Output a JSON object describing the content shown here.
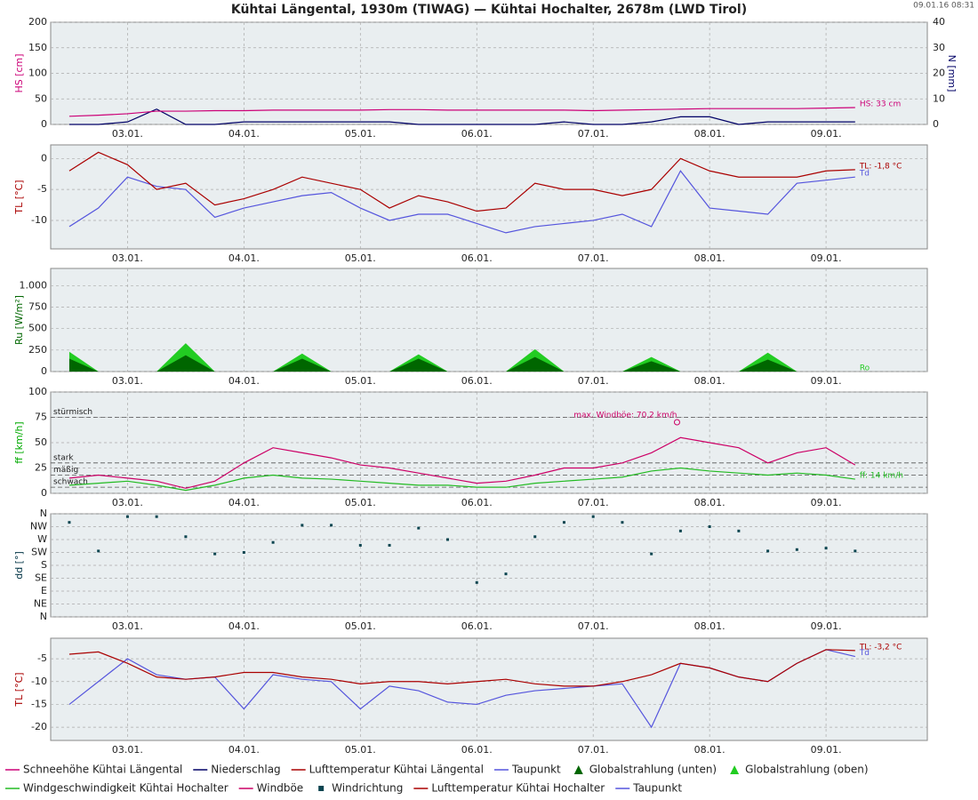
{
  "title": "Kühtai Längental, 1930m (TIWAG) — Kühtai Hochalter, 2678m (LWD Tirol)",
  "timestamp": "09.01.16 08:31",
  "x": [
    2.5,
    2.75,
    3,
    3.25,
    3.5,
    3.75,
    4,
    4.25,
    4.5,
    4.75,
    5,
    5.25,
    5.5,
    5.75,
    6,
    6.25,
    6.5,
    6.75,
    7,
    7.25,
    7.5,
    7.75,
    8,
    8.25,
    8.5,
    8.75,
    9,
    9.25
  ],
  "xlim": [
    2.34,
    9.87
  ],
  "xticks": [
    {
      "value": 3,
      "label": "03.01."
    },
    {
      "value": 4,
      "label": "04.01."
    },
    {
      "value": 5,
      "label": "05.01."
    },
    {
      "value": 6,
      "label": "06.01."
    },
    {
      "value": 7,
      "label": "07.01."
    },
    {
      "value": 8,
      "label": "08.01."
    },
    {
      "value": 9,
      "label": "09.01."
    }
  ],
  "chart_data": [
    {
      "type": "line",
      "ylabel": "HS [cm]",
      "ylabel_color": "#cc0077",
      "y2label": "N [mm]",
      "y2label_color": "#000066",
      "ylim": [
        0,
        200
      ],
      "yticks": [
        0,
        50,
        100,
        150,
        200
      ],
      "y2lim": [
        0,
        40
      ],
      "y2ticks": [
        0,
        10,
        20,
        30,
        40
      ],
      "series": [
        {
          "name": "Schneehöhe Kühtai Längental",
          "color": "#cc0077",
          "label": "HS: 33 cm",
          "values": [
            16,
            18,
            21,
            26,
            26,
            27,
            27,
            28,
            28,
            28,
            28,
            29,
            29,
            28,
            28,
            28,
            28,
            28,
            27,
            28,
            29,
            30,
            31,
            31,
            31,
            31,
            32,
            33
          ]
        },
        {
          "name": "Niederschlag",
          "color": "#000066",
          "axis": "y2",
          "values": [
            0,
            0,
            1,
            6,
            0,
            0,
            1,
            1,
            1,
            1,
            1,
            1,
            0,
            0,
            0,
            0,
            0,
            1,
            0,
            0,
            1,
            3,
            3,
            0,
            1,
            1,
            1,
            1
          ]
        }
      ]
    },
    {
      "type": "line",
      "ylabel": "TL [°C]",
      "ylabel_color": "#aa0000",
      "ylim": [
        -14.6,
        2.2
      ],
      "yticks": [
        -10,
        -5,
        0
      ],
      "series": [
        {
          "name": "Lufttemperatur Kühtai Längental",
          "color": "#aa0000",
          "label": "TL: -1,8 °C",
          "values": [
            -2,
            1,
            -1,
            -5,
            -4,
            -7.5,
            -6.5,
            -5,
            -3,
            -4,
            -5,
            -8,
            -6,
            -7,
            -8.5,
            -8,
            -4,
            -5,
            -5,
            -6,
            -5,
            0,
            -2,
            -3,
            -3,
            -3,
            -2,
            -1.8
          ]
        },
        {
          "name": "Taupunkt",
          "color": "#5555dd",
          "label": "Td",
          "values": [
            -11,
            -8,
            -3,
            -4.5,
            -5,
            -9.5,
            -8,
            -7,
            -6,
            -5.5,
            -8,
            -10,
            -9,
            -9,
            -10.5,
            -12,
            -11,
            -10.5,
            -10,
            -9,
            -11,
            -2,
            -8,
            -8.5,
            -9,
            -4,
            -3.5,
            -3
          ]
        }
      ]
    },
    {
      "type": "area",
      "ylabel": "Ru [W/m²]",
      "ylabel_color": "#006600",
      "ylim": [
        0,
        1200
      ],
      "yticks": [
        0,
        250,
        500,
        750,
        {
          "value": 1000,
          "label": "1.000"
        }
      ],
      "series": [
        {
          "name": "Globalstrahlung (unten)",
          "color": "#006600",
          "values": [
            150,
            0,
            0,
            0,
            190,
            0,
            0,
            0,
            150,
            0,
            0,
            0,
            150,
            0,
            0,
            0,
            170,
            0,
            0,
            0,
            120,
            0,
            0,
            0,
            140,
            0,
            0,
            0
          ]
        },
        {
          "name": "Globalstrahlung (oben)",
          "color": "#22cc22",
          "label": "Ro",
          "values": [
            230,
            0,
            0,
            0,
            330,
            0,
            0,
            0,
            210,
            0,
            0,
            0,
            200,
            0,
            0,
            0,
            260,
            0,
            0,
            0,
            170,
            0,
            0,
            0,
            220,
            0,
            0,
            0
          ]
        }
      ]
    },
    {
      "type": "line",
      "ylabel": "ff [km/h]",
      "ylabel_color": "#00aa00",
      "ylim": [
        0,
        100
      ],
      "yticks": [
        0,
        25,
        50,
        75,
        100
      ],
      "thresholds": [
        {
          "label": "stürmisch",
          "value": 75
        },
        {
          "label": "stark",
          "value": 30
        },
        {
          "label": "mäßig",
          "value": 18
        },
        {
          "label": "schwach",
          "value": 6
        }
      ],
      "max": {
        "label": "max. Windböe: 70,2 km/h",
        "x": 7.72,
        "value": 70.2
      },
      "series": [
        {
          "name": "Windgeschwindigkeit Kühtai Hochalter",
          "color": "#22bb22",
          "label": "ff: 14 km/h",
          "values": [
            8,
            10,
            12,
            8,
            3,
            8,
            15,
            18,
            15,
            14,
            12,
            10,
            8,
            8,
            6,
            6,
            10,
            12,
            14,
            16,
            22,
            25,
            22,
            20,
            18,
            20,
            18,
            14
          ]
        },
        {
          "name": "Windböe",
          "color": "#cc0066",
          "values": [
            15,
            18,
            15,
            12,
            5,
            12,
            30,
            45,
            40,
            35,
            28,
            25,
            20,
            15,
            10,
            12,
            18,
            25,
            25,
            30,
            40,
            55,
            50,
            45,
            30,
            40,
            45,
            28
          ]
        }
      ]
    },
    {
      "type": "scatter",
      "ylabel": "dd [°]",
      "ylabel_color": "#003344",
      "ylim": [
        0,
        360
      ],
      "yticks": [
        {
          "value": 0,
          "label": "N"
        },
        {
          "value": 45,
          "label": "NE"
        },
        {
          "value": 90,
          "label": "E"
        },
        {
          "value": 135,
          "label": "SE"
        },
        {
          "value": 180,
          "label": "S"
        },
        {
          "value": 225,
          "label": "SW"
        },
        {
          "value": 270,
          "label": "W"
        },
        {
          "value": 315,
          "label": "NW"
        },
        {
          "value": 360,
          "label": "N"
        }
      ],
      "series": [
        {
          "name": "Windrichtung",
          "color": "#0b4550",
          "values": [
            330,
            230,
            350,
            350,
            280,
            220,
            225,
            260,
            320,
            320,
            250,
            250,
            310,
            270,
            120,
            150,
            280,
            330,
            350,
            330,
            220,
            300,
            315,
            300,
            230,
            235,
            240,
            230
          ]
        }
      ]
    },
    {
      "type": "line",
      "ylabel": "TL [°C]",
      "ylabel_color": "#aa0000",
      "ylim": [
        -22.9,
        -0.5
      ],
      "yticks": [
        -20,
        -15,
        -10,
        -5
      ],
      "series": [
        {
          "name": "Lufttemperatur Kühtai Hochalter",
          "color": "#aa0000",
          "label": "TL: -3,2 °C",
          "values": [
            -4,
            -3.5,
            -6,
            -9,
            -9.5,
            -9,
            -8,
            -8,
            -9,
            -9.5,
            -10.5,
            -10,
            -10,
            -10.5,
            -10,
            -9.5,
            -10.5,
            -11,
            -11,
            -10,
            -8.5,
            -6,
            -7,
            -9,
            -10,
            -6,
            -3,
            -3.2
          ]
        },
        {
          "name": "Taupunkt",
          "color": "#5555dd",
          "label": "Td",
          "values": [
            -15,
            -10,
            -5,
            -8.5,
            -9.5,
            -9,
            -16,
            -8.5,
            -9.5,
            -10,
            -16,
            -11,
            -12,
            -14.5,
            -15,
            -13,
            -12,
            -11.5,
            -11,
            -10.5,
            -20,
            -6,
            -7,
            -9,
            -10,
            -6,
            -3,
            -4.5
          ]
        }
      ]
    }
  ]
}
